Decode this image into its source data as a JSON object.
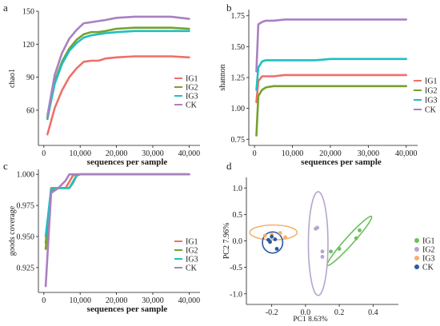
{
  "colors": {
    "IG1": "#ef6f6a",
    "IG2": "#76a12c",
    "IG3": "#1fbfc0",
    "CK": "#a980c2",
    "pca_IG1": "#6cc05d",
    "pca_IG2": "#b6a4cf",
    "pca_IG3": "#f5b06a",
    "pca_CK": "#2b5aa0",
    "axis": "#1a1a1a"
  },
  "chart_data": [
    {
      "panel_label": "a",
      "type": "line",
      "title": "",
      "xlabel": "sequences per sample",
      "ylabel": "chao1",
      "xlim": [
        -1500,
        43000
      ],
      "ylim": [
        28,
        150
      ],
      "x_ticks": [
        0,
        10000,
        20000,
        30000,
        40000
      ],
      "x_tick_labels": [
        "0",
        "10,000",
        "20,000",
        "30,000",
        "40,000"
      ],
      "y_ticks": [
        60,
        90,
        120,
        150
      ],
      "y_tick_labels": [
        "60",
        "90",
        "120",
        "150"
      ],
      "grid": false,
      "legend_placement": "right",
      "series": [
        {
          "name": "IG1",
          "x": [
            1000,
            3000,
            5000,
            7000,
            9000,
            11000,
            13000,
            15000,
            17000,
            20000,
            25000,
            30000,
            35000,
            40000
          ],
          "y": [
            38,
            62,
            78,
            90,
            98,
            104,
            105,
            105,
            107,
            108,
            109,
            109,
            109,
            108
          ]
        },
        {
          "name": "IG2",
          "x": [
            1000,
            3000,
            5000,
            7000,
            9000,
            11000,
            13000,
            15000,
            17000,
            20000,
            25000,
            30000,
            35000,
            40000
          ],
          "y": [
            52,
            86,
            104,
            116,
            124,
            129,
            131,
            131,
            132,
            134,
            135,
            135,
            135,
            134
          ]
        },
        {
          "name": "IG3",
          "x": [
            1000,
            3000,
            5000,
            7000,
            9000,
            11000,
            13000,
            15000,
            17000,
            20000,
            25000,
            30000,
            35000,
            40000
          ],
          "y": [
            53,
            84,
            102,
            114,
            121,
            126,
            128,
            129,
            130,
            131,
            132,
            132,
            132,
            132
          ]
        },
        {
          "name": "CK",
          "x": [
            1000,
            3000,
            5000,
            7000,
            9000,
            11000,
            13000,
            15000,
            17000,
            20000,
            25000,
            30000,
            35000,
            40000
          ],
          "y": [
            55,
            92,
            112,
            125,
            133,
            139,
            140,
            141,
            142,
            144,
            145,
            145,
            145,
            143
          ]
        }
      ]
    },
    {
      "panel_label": "b",
      "type": "line",
      "title": "",
      "xlabel": "sequences per sample",
      "ylabel": "shannon",
      "xlim": [
        -1500,
        43000
      ],
      "ylim": [
        0.7,
        1.8
      ],
      "x_ticks": [
        0,
        10000,
        20000,
        30000,
        40000
      ],
      "x_tick_labels": [
        "0",
        "10,000",
        "20,000",
        "30,000",
        "40,000"
      ],
      "y_ticks": [
        0.75,
        1.0,
        1.25,
        1.5,
        1.75
      ],
      "y_tick_labels": [
        "0.75",
        "1.00",
        "1.25",
        "1.50",
        "1.75"
      ],
      "grid": false,
      "legend_placement": "right",
      "series": [
        {
          "name": "IG1",
          "x": [
            500,
            1000,
            2000,
            3000,
            5000,
            8000,
            12000,
            16000,
            20000,
            25000,
            30000,
            35000,
            40000
          ],
          "y": [
            1.05,
            1.22,
            1.26,
            1.26,
            1.26,
            1.27,
            1.27,
            1.27,
            1.27,
            1.27,
            1.27,
            1.27,
            1.27
          ]
        },
        {
          "name": "IG2",
          "x": [
            500,
            1000,
            2000,
            3000,
            5000,
            8000,
            12000,
            16000,
            20000,
            25000,
            30000,
            35000,
            40000
          ],
          "y": [
            0.78,
            1.1,
            1.15,
            1.17,
            1.18,
            1.18,
            1.18,
            1.18,
            1.18,
            1.18,
            1.18,
            1.18,
            1.18
          ]
        },
        {
          "name": "IG3",
          "x": [
            500,
            1000,
            2000,
            3000,
            5000,
            8000,
            12000,
            16000,
            20000,
            25000,
            30000,
            35000,
            40000
          ],
          "y": [
            1.15,
            1.33,
            1.38,
            1.39,
            1.39,
            1.39,
            1.39,
            1.39,
            1.4,
            1.4,
            1.4,
            1.4,
            1.4
          ]
        },
        {
          "name": "CK",
          "x": [
            500,
            1000,
            2000,
            3000,
            5000,
            8000,
            12000,
            16000,
            20000,
            25000,
            30000,
            35000,
            40000
          ],
          "y": [
            1.3,
            1.68,
            1.7,
            1.71,
            1.71,
            1.72,
            1.72,
            1.72,
            1.72,
            1.72,
            1.72,
            1.72,
            1.72
          ]
        }
      ]
    },
    {
      "panel_label": "c",
      "type": "line",
      "title": "",
      "xlabel": "sequences per sample",
      "ylabel": "goods coverage",
      "xlim": [
        -1500,
        43000
      ],
      "ylim": [
        0.905,
        1.004
      ],
      "x_ticks": [
        0,
        10000,
        20000,
        30000,
        40000
      ],
      "x_tick_labels": [
        "0",
        "10,000",
        "20,000",
        "30,000",
        "40,000"
      ],
      "y_ticks": [
        0.925,
        0.95,
        0.975,
        1.0
      ],
      "y_tick_labels": [
        "0.925",
        "0.950",
        "0.975",
        "1.000"
      ],
      "grid": false,
      "legend_placement": "right",
      "series": [
        {
          "name": "IG1",
          "x": [
            500,
            2000,
            4000,
            6000,
            7000,
            8000,
            9000,
            10000,
            20000,
            30000,
            40000
          ],
          "y": [
            0.945,
            0.989,
            0.989,
            0.989,
            0.994,
            0.999,
            1.0,
            1.0,
            1.0,
            1.0,
            1.0
          ]
        },
        {
          "name": "IG2",
          "x": [
            500,
            2000,
            4000,
            6000,
            7000,
            8000,
            9000,
            10000,
            20000,
            30000,
            40000
          ],
          "y": [
            0.94,
            0.987,
            0.989,
            0.989,
            0.989,
            0.993,
            0.999,
            1.0,
            1.0,
            1.0,
            1.0
          ]
        },
        {
          "name": "IG3",
          "x": [
            500,
            2000,
            4000,
            6000,
            7000,
            8000,
            9000,
            10000,
            20000,
            30000,
            40000
          ],
          "y": [
            0.95,
            0.988,
            0.989,
            0.989,
            0.989,
            0.994,
            0.999,
            1.0,
            1.0,
            1.0,
            1.0
          ]
        },
        {
          "name": "CK",
          "x": [
            500,
            2000,
            4000,
            6000,
            7000,
            8000,
            9000,
            10000,
            20000,
            30000,
            40000
          ],
          "y": [
            0.91,
            0.985,
            0.989,
            0.995,
            1.0,
            1.0,
            1.0,
            1.0,
            1.0,
            1.0,
            1.0
          ]
        }
      ]
    },
    {
      "panel_label": "d",
      "type": "scatter",
      "title": "",
      "xlabel": "PC1 8.63%",
      "ylabel": "PC2 7.96%",
      "xlim": [
        -0.35,
        0.55
      ],
      "ylim": [
        -1.2,
        1.2
      ],
      "x_ticks": [
        -0.2,
        0.0,
        0.2,
        0.4
      ],
      "x_tick_labels": [
        "-0.2",
        "0.0",
        "0.2",
        "0.4"
      ],
      "y_ticks": [
        -1.0,
        -0.5,
        0.0,
        0.5,
        1.0
      ],
      "y_tick_labels": [
        "-1.0",
        "-0.5",
        "0.0",
        "0.5",
        "1.0"
      ],
      "grid": false,
      "legend_placement": "right",
      "series": [
        {
          "name": "IG1",
          "x": [
            0.15,
            0.2,
            0.3,
            0.32
          ],
          "y": [
            -0.2,
            -0.15,
            0.05,
            0.2
          ],
          "ellipse": {
            "cx": 0.26,
            "cy": 0.0,
            "rx": 0.23,
            "ry": 0.14,
            "angle_deg": -48
          }
        },
        {
          "name": "IG2",
          "x": [
            0.06,
            0.07,
            0.1,
            0.1
          ],
          "y": [
            0.23,
            0.25,
            -0.2,
            -0.3
          ],
          "ellipse": {
            "cx": 0.075,
            "cy": -0.05,
            "rx": 0.058,
            "ry": 0.98,
            "angle_deg": 0
          }
        },
        {
          "name": "IG3",
          "x": [
            -0.2,
            -0.15,
            -0.12,
            -0.24
          ],
          "y": [
            0.12,
            0.15,
            0.07,
            0.1
          ],
          "ellipse": {
            "cx": -0.19,
            "cy": 0.16,
            "rx": 0.14,
            "ry": 0.14,
            "angle_deg": 0
          }
        },
        {
          "name": "CK",
          "x": [
            -0.22,
            -0.2,
            -0.18,
            -0.17,
            -0.21
          ],
          "y": [
            0.02,
            0.08,
            0.03,
            -0.15,
            -0.02
          ],
          "ellipse": {
            "cx": -0.195,
            "cy": -0.03,
            "rx": 0.06,
            "ry": 0.2,
            "angle_deg": 0
          }
        }
      ]
    }
  ]
}
